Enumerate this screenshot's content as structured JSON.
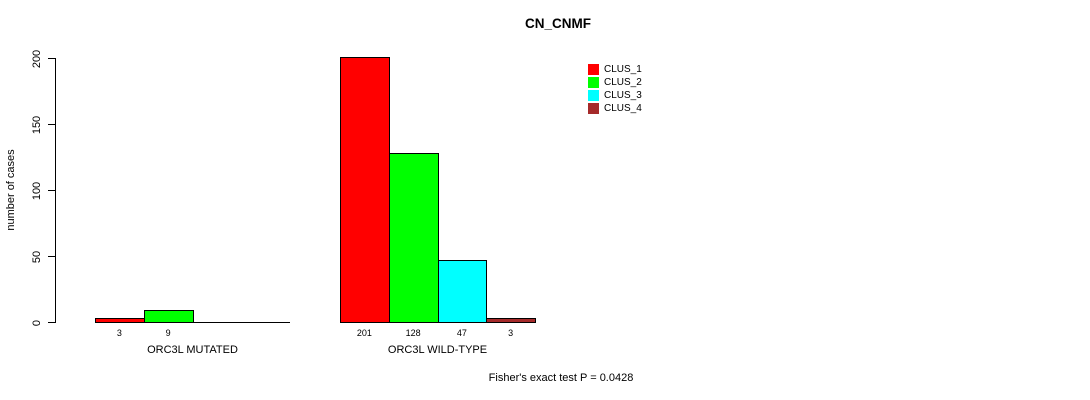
{
  "title": "CN_CNMF",
  "y_axis": {
    "label": "number of cases",
    "ticks": [
      0,
      50,
      100,
      150,
      200
    ]
  },
  "footer": "Fisher's exact test P = 0.0428",
  "legend": {
    "items": [
      {
        "label": "CLUS_1",
        "color": "#FF0000"
      },
      {
        "label": "CLUS_2",
        "color": "#00FF00"
      },
      {
        "label": "CLUS_3",
        "color": "#00FFFF"
      },
      {
        "label": "CLUS_4",
        "color": "#A52A2A"
      }
    ]
  },
  "chart_data": {
    "type": "bar",
    "title": "CN_CNMF",
    "ylabel": "number of cases",
    "xlabel": "",
    "ylim": [
      0,
      200
    ],
    "yticks": [
      0,
      50,
      100,
      150,
      200
    ],
    "grid": false,
    "legend_position": "top-right",
    "categories": [
      "ORC3L MUTATED",
      "ORC3L WILD-TYPE"
    ],
    "series": [
      {
        "name": "CLUS_1",
        "color": "#FF0000",
        "values": [
          3,
          201
        ]
      },
      {
        "name": "CLUS_2",
        "color": "#00FF00",
        "values": [
          9,
          128
        ]
      },
      {
        "name": "CLUS_3",
        "color": "#00FFFF",
        "values": [
          0,
          47
        ]
      },
      {
        "name": "CLUS_4",
        "color": "#A52A2A",
        "values": [
          0,
          3
        ]
      }
    ],
    "bar_value_labels_shown_when_nonzero": true,
    "annotation": "Fisher's exact test P = 0.0428"
  }
}
